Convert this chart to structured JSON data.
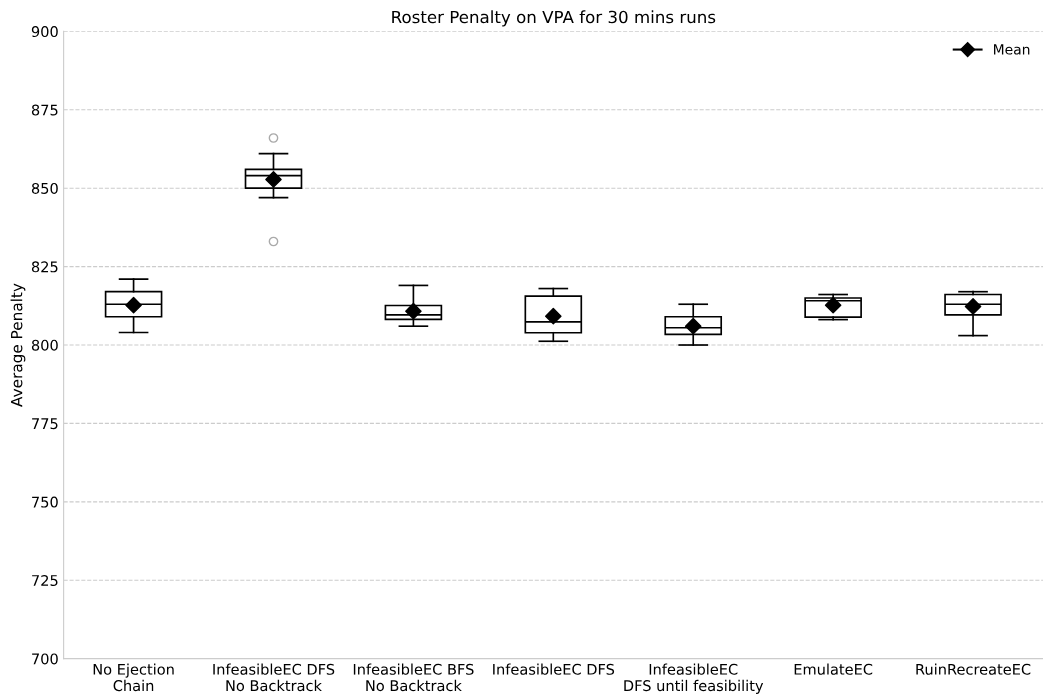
{
  "chart_data": {
    "type": "box",
    "title": "Roster Penalty on VPA for 30 mins runs",
    "ylabel": "Average Penalty",
    "categories": [
      "No Ejection\nChain",
      "InfeasibleEC DFS\nNo Backtrack",
      "InfeasibleEC BFS\nNo Backtrack",
      "InfeasibleEC DFS",
      "InfeasibleEC\nDFS until feasibility",
      "EmulateEC",
      "RuinRecreateEC"
    ],
    "boxes": [
      {
        "low": 804,
        "q1": 809,
        "median": 813,
        "q3": 817,
        "high": 821
      },
      {
        "low": 847,
        "q1": 850,
        "median": 854,
        "q3": 856,
        "high": 861,
        "outliers": [
          866,
          833
        ]
      },
      {
        "low": 806,
        "q1": 808.2,
        "median": 809.6,
        "q3": 812.6,
        "high": 819
      },
      {
        "low": 801.2,
        "q1": 803.9,
        "median": 807.4,
        "q3": 815.6,
        "high": 818
      },
      {
        "low": 800,
        "q1": 803.4,
        "median": 805.5,
        "q3": 809,
        "high": 813
      },
      {
        "low": 808.1,
        "q1": 808.9,
        "median": 814.1,
        "q3": 815,
        "high": 816.1
      },
      {
        "low": 803,
        "q1": 809.6,
        "median": 813,
        "q3": 816.1,
        "high": 817
      }
    ],
    "series": [
      {
        "name": "Mean",
        "type": "scatter",
        "color": "#000000",
        "marker": "diamond",
        "values": [
          812.7,
          852.8,
          810.8,
          809.2,
          806,
          812.7,
          812.3
        ]
      }
    ],
    "ylim": [
      700,
      900
    ],
    "yticks": [
      700,
      725,
      750,
      775,
      800,
      825,
      850,
      875,
      900
    ],
    "grid": "y",
    "legend": "top right"
  }
}
